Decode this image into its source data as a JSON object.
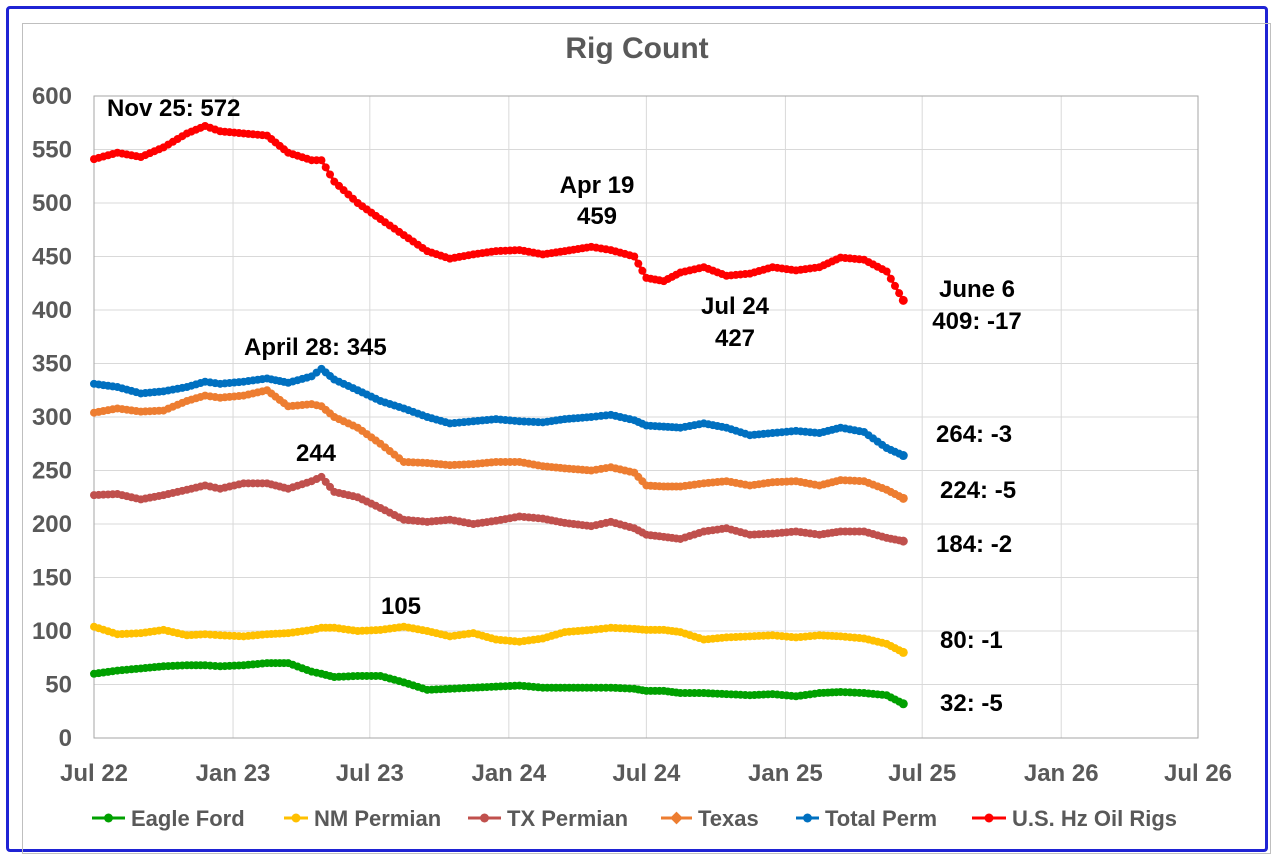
{
  "chart_data": {
    "type": "line",
    "title": "Rig Count",
    "xlabel": "",
    "ylabel": "",
    "ylim": [
      0,
      600
    ],
    "y_ticks": [
      "0",
      "50",
      "100",
      "150",
      "200",
      "250",
      "300",
      "350",
      "400",
      "450",
      "500",
      "550",
      "600"
    ],
    "x_ticks": [
      "Jul 22",
      "Jan 23",
      "Jul 23",
      "Jan 24",
      "Jul 24",
      "Jan 25",
      "Jul 25",
      "Jan 26",
      "Jul 26"
    ],
    "grid": true,
    "legend_position": "bottom",
    "x_dates": [
      "2022-07-01",
      "2022-08-01",
      "2022-09-01",
      "2022-10-01",
      "2022-11-01",
      "2022-11-25",
      "2022-12-15",
      "2023-01-15",
      "2023-02-15",
      "2023-03-15",
      "2023-04-15",
      "2023-04-28",
      "2023-05-15",
      "2023-06-15",
      "2023-07-15",
      "2023-08-15",
      "2023-09-15",
      "2023-10-15",
      "2023-11-15",
      "2023-12-15",
      "2024-01-15",
      "2024-02-15",
      "2024-03-15",
      "2024-04-19",
      "2024-05-15",
      "2024-06-15",
      "2024-07-01",
      "2024-07-24",
      "2024-08-15",
      "2024-09-15",
      "2024-10-15",
      "2024-11-15",
      "2024-12-15",
      "2025-01-15",
      "2025-02-15",
      "2025-03-15",
      "2025-04-15",
      "2025-05-15",
      "2025-06-06"
    ],
    "series": [
      {
        "name": "Eagle Ford",
        "color": "#00a000",
        "values": [
          60,
          63,
          65,
          67,
          68,
          68,
          67,
          68,
          70,
          70,
          62,
          60,
          57,
          58,
          58,
          52,
          45,
          46,
          47,
          48,
          49,
          47,
          47,
          47,
          47,
          46,
          44,
          44,
          42,
          42,
          41,
          40,
          41,
          39,
          42,
          43,
          42,
          40,
          32
        ]
      },
      {
        "name": "NM Permian",
        "color": "#ffc000",
        "values": [
          104,
          97,
          98,
          101,
          96,
          97,
          96,
          95,
          97,
          98,
          101,
          103,
          103,
          100,
          101,
          104,
          100,
          95,
          98,
          92,
          90,
          93,
          99,
          101,
          103,
          102,
          101,
          101,
          99,
          92,
          94,
          95,
          96,
          94,
          96,
          95,
          93,
          88,
          80
        ]
      },
      {
        "name": "TX Permian",
        "color": "#c0504d",
        "values": [
          227,
          228,
          223,
          227,
          232,
          236,
          233,
          238,
          238,
          233,
          240,
          244,
          230,
          225,
          215,
          204,
          202,
          204,
          200,
          203,
          207,
          205,
          201,
          198,
          202,
          196,
          190,
          188,
          186,
          193,
          196,
          190,
          191,
          193,
          190,
          193,
          193,
          187,
          184
        ]
      },
      {
        "name": "Texas",
        "color": "#ed7d31",
        "values": [
          304,
          308,
          305,
          306,
          315,
          320,
          318,
          320,
          325,
          310,
          312,
          310,
          300,
          290,
          275,
          258,
          257,
          255,
          256,
          258,
          258,
          254,
          252,
          250,
          253,
          248,
          236,
          235,
          235,
          238,
          240,
          236,
          239,
          240,
          236,
          241,
          240,
          232,
          224
        ]
      },
      {
        "name": "Total Perm",
        "color": "#0070c0",
        "values": [
          331,
          328,
          322,
          324,
          328,
          333,
          331,
          333,
          336,
          332,
          338,
          345,
          335,
          325,
          315,
          308,
          300,
          294,
          296,
          298,
          296,
          295,
          298,
          300,
          302,
          297,
          292,
          291,
          290,
          294,
          290,
          283,
          285,
          287,
          285,
          290,
          286,
          271,
          264
        ]
      },
      {
        "name": "U.S. Hz Oil Rigs",
        "color": "#ff0000",
        "values": [
          541,
          547,
          543,
          552,
          565,
          572,
          567,
          565,
          563,
          547,
          540,
          540,
          520,
          500,
          485,
          470,
          455,
          448,
          452,
          455,
          456,
          452,
          455,
          459,
          456,
          450,
          430,
          427,
          435,
          440,
          432,
          434,
          440,
          437,
          440,
          449,
          447,
          436,
          409
        ]
      }
    ],
    "annotations": [
      {
        "text": "Nov 25: 572"
      },
      {
        "text": "Apr 19"
      },
      {
        "text": "459"
      },
      {
        "text": "Jul 24"
      },
      {
        "text": "427"
      },
      {
        "text": "June 6"
      },
      {
        "text": "409: -17"
      },
      {
        "text": "April 28: 345"
      },
      {
        "text": "264: -3"
      },
      {
        "text": "244"
      },
      {
        "text": "224: -5"
      },
      {
        "text": "184: -2"
      },
      {
        "text": "105"
      },
      {
        "text": "80: -1"
      },
      {
        "text": "32: -5"
      }
    ]
  }
}
